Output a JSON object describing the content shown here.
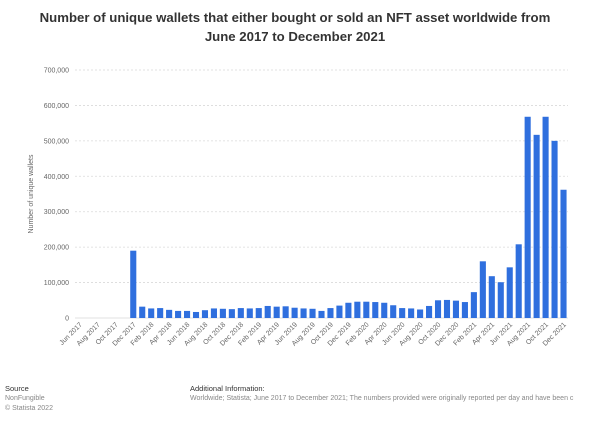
{
  "title_line1": "Number of unique wallets that either bought or sold an NFT asset worldwide from",
  "title_line2": "June 2017 to December 2021",
  "footer": {
    "source_heading": "Source",
    "source_line1": "NonFungible",
    "source_line2": "© Statista 2022",
    "info_heading": "Additional Information:",
    "info_text": "Worldwide; Statista; June 2017 to December 2021; The numbers provided were originally reported per day and have been c"
  },
  "colors": {
    "bar": "#2f6fde",
    "grid": "#d9d9d9",
    "axis_text": "#666666",
    "title": "#333333"
  },
  "chart_data": {
    "type": "bar",
    "title": "Number of unique wallets that either bought or sold an NFT asset worldwide from June 2017 to December 2021",
    "ylabel": "Number of unique wallets",
    "xlabel": "",
    "ylim": [
      0,
      700000
    ],
    "yticks": [
      "0",
      "100,000",
      "200,000",
      "300,000",
      "400,000",
      "500,000",
      "600,000",
      "700,000"
    ],
    "grid": true,
    "categories": [
      "Jun 2017",
      "Jul 2017",
      "Aug 2017",
      "Sep 2017",
      "Oct 2017",
      "Nov 2017",
      "Dec 2017",
      "Jan 2018",
      "Feb 2018",
      "Mar 2018",
      "Apr 2018",
      "May 2018",
      "Jun 2018",
      "Jul 2018",
      "Aug 2018",
      "Sep 2018",
      "Oct 2018",
      "Nov 2018",
      "Dec 2018",
      "Jan 2019",
      "Feb 2019",
      "Mar 2019",
      "Apr 2019",
      "May 2019",
      "Jun 2019",
      "Jul 2019",
      "Aug 2019",
      "Sep 2019",
      "Oct 2019",
      "Nov 2019",
      "Dec 2019",
      "Jan 2020",
      "Feb 2020",
      "Mar 2020",
      "Apr 2020",
      "May 2020",
      "Jun 2020",
      "Jul 2020",
      "Aug 2020",
      "Sep 2020",
      "Oct 2020",
      "Nov 2020",
      "Dec 2020",
      "Jan 2021",
      "Feb 2021",
      "Mar 2021",
      "Apr 2021",
      "May 2021",
      "Jun 2021",
      "Jul 2021",
      "Aug 2021",
      "Sep 2021",
      "Oct 2021",
      "Nov 2021",
      "Dec 2021"
    ],
    "tick_labels": [
      "Jun 2017",
      "",
      "Aug 2017",
      "",
      "Oct 2017",
      "",
      "Dec 2017",
      "",
      "Feb 2018",
      "",
      "Apr 2018",
      "",
      "Jun 2018",
      "",
      "Aug 2018",
      "",
      "Oct 2018",
      "",
      "Dec 2018",
      "",
      "Feb 2019",
      "",
      "Apr 2019",
      "",
      "Jun 2019",
      "",
      "Aug 2019",
      "",
      "Oct 2019",
      "",
      "Dec 2019",
      "",
      "Feb 2020",
      "",
      "Apr 2020",
      "",
      "Jun 2020",
      "",
      "Aug 2020",
      "",
      "Oct 2020",
      "",
      "Dec 2020",
      "",
      "Feb 2021",
      "",
      "Apr 2021",
      "",
      "Jun 2021",
      "",
      "Aug 2021",
      "",
      "Oct 2021",
      "",
      "Dec 2021"
    ],
    "values": [
      0,
      0,
      0,
      0,
      0,
      0,
      190000,
      32000,
      27000,
      28000,
      23000,
      20000,
      20000,
      17000,
      22000,
      27000,
      26000,
      25000,
      28000,
      27000,
      28000,
      34000,
      32000,
      33000,
      29000,
      27000,
      26000,
      20000,
      28000,
      35000,
      43000,
      46000,
      46000,
      45000,
      43000,
      36000,
      28000,
      27000,
      24000,
      34000,
      50000,
      51000,
      49000,
      45000,
      73000,
      160000,
      118000,
      101000,
      143000,
      208000,
      568000,
      517000,
      568000,
      500000,
      362000
    ]
  }
}
